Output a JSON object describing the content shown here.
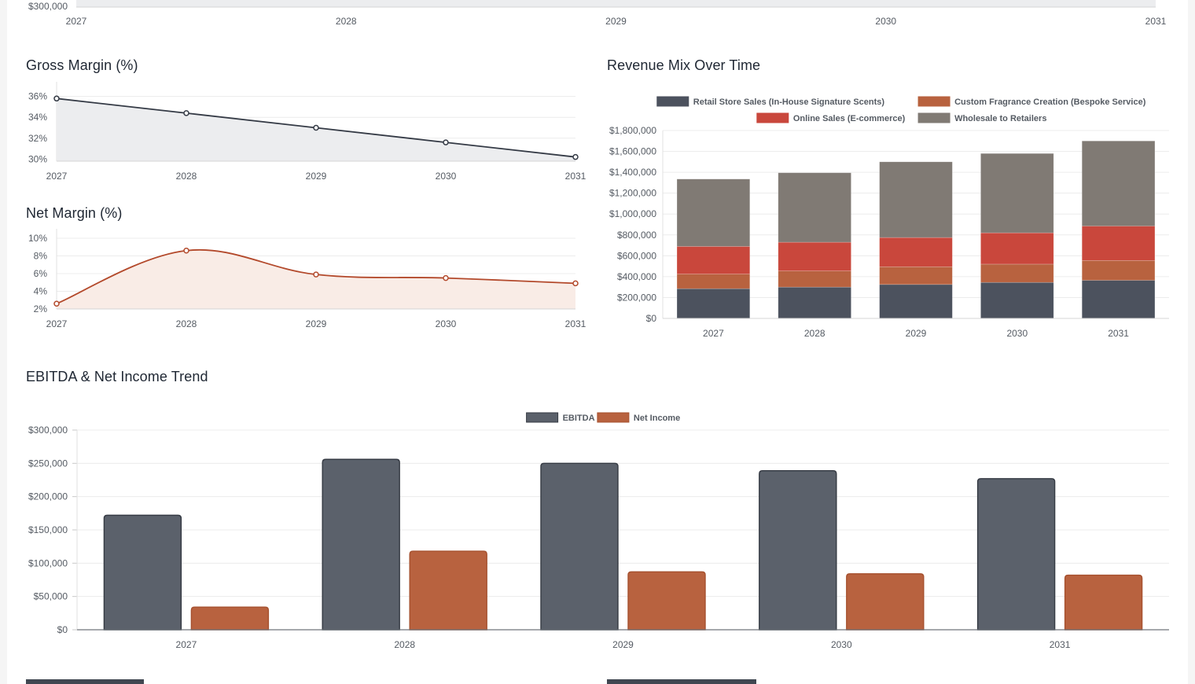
{
  "colors": {
    "slate": "#4c525e",
    "slate_bar": "#5b616b",
    "terracotta": "#b8623f",
    "red": "#c9473c",
    "gray": "#807a74",
    "line_dark": "#343a45",
    "line_orange": "#b3492b",
    "fill_gray": "#ecedef",
    "fill_peach": "#f9ece6",
    "grid": "#ececec"
  },
  "top_chart": {
    "y_tick_visible": "$300,000",
    "x_labels": [
      "2027",
      "2028",
      "2029",
      "2030",
      "2031"
    ]
  },
  "gross_margin": {
    "title": "Gross Margin (%)",
    "chart_data": {
      "type": "area",
      "categories": [
        "2027",
        "2028",
        "2029",
        "2030",
        "2031"
      ],
      "values": [
        35.8,
        34.4,
        33.0,
        31.6,
        30.2
      ],
      "y_ticks": [
        "30%",
        "32%",
        "34%",
        "36%"
      ],
      "ylim": [
        29.8,
        36.5
      ]
    }
  },
  "net_margin": {
    "title": "Net Margin (%)",
    "chart_data": {
      "type": "area",
      "categories": [
        "2027",
        "2028",
        "2029",
        "2030",
        "2031"
      ],
      "values": [
        2.6,
        8.6,
        5.9,
        5.5,
        4.9
      ],
      "y_ticks": [
        "2%",
        "4%",
        "6%",
        "8%",
        "10%"
      ],
      "ylim": [
        2,
        10
      ]
    }
  },
  "revenue_mix": {
    "title": "Revenue Mix Over Time",
    "chart_data": {
      "type": "bar",
      "stacked": true,
      "categories": [
        "2027",
        "2028",
        "2029",
        "2030",
        "2031"
      ],
      "series": [
        {
          "name": "Retail Store Sales (In-House Signature Scents)",
          "values": [
            285000,
            300000,
            325000,
            345000,
            365000
          ]
        },
        {
          "name": "Custom Fragrance Creation (Bespoke Service)",
          "values": [
            140000,
            155000,
            170000,
            175000,
            190000
          ]
        },
        {
          "name": "Online Sales (E-commerce)",
          "values": [
            265000,
            275000,
            280000,
            300000,
            330000
          ]
        },
        {
          "name": "Wholesale to Retailers",
          "values": [
            645000,
            665000,
            725000,
            760000,
            815000
          ]
        }
      ],
      "y_ticks": [
        "$0",
        "$200,000",
        "$400,000",
        "$600,000",
        "$800,000",
        "$1,000,000",
        "$1,200,000",
        "$1,400,000",
        "$1,600,000",
        "$1,800,000"
      ],
      "ylim": [
        0,
        1800000
      ],
      "legend": "top"
    }
  },
  "ebitda": {
    "title": "EBITDA & Net Income Trend",
    "chart_data": {
      "type": "bar",
      "categories": [
        "2027",
        "2028",
        "2029",
        "2030",
        "2031"
      ],
      "series": [
        {
          "name": "EBITDA",
          "values": [
            172000,
            256000,
            250000,
            239000,
            227000
          ]
        },
        {
          "name": "Net Income",
          "values": [
            34000,
            118000,
            87000,
            84000,
            82000
          ]
        }
      ],
      "y_ticks": [
        "$0",
        "$50,000",
        "$100,000",
        "$150,000",
        "$200,000",
        "$250,000",
        "$300,000"
      ],
      "ylim": [
        0,
        300000
      ],
      "legend": "top"
    }
  }
}
